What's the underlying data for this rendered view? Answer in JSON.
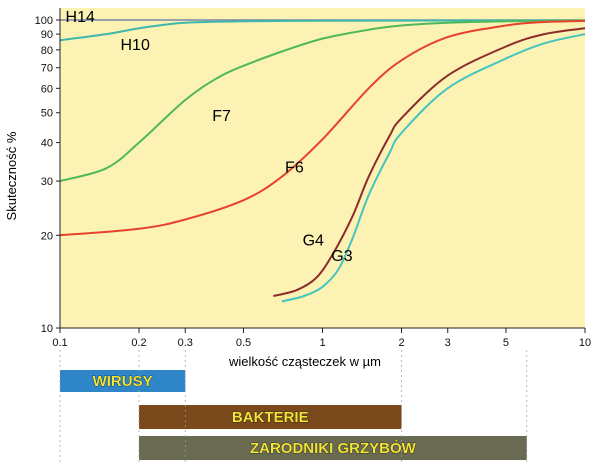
{
  "chart_data": {
    "type": "line",
    "xlabel": "wielkość cząsteczek w µm",
    "ylabel": "Skuteczność %",
    "xscale": "log",
    "yscale": "log",
    "xlim": [
      0.1,
      10
    ],
    "ylim": [
      10,
      100
    ],
    "x_ticks": [
      "0.1",
      "0.2",
      "0.3",
      "0.5",
      "1",
      "2",
      "3",
      "5",
      "10"
    ],
    "y_ticks": [
      "10",
      "20",
      "30",
      "40",
      "50",
      "60",
      "70",
      "80",
      "90",
      "100"
    ],
    "grid": false,
    "background": "#fbf2b4",
    "series": [
      {
        "name": "H14",
        "color": "#7a86a8",
        "x": [
          0.1,
          10
        ],
        "y": [
          100,
          100
        ]
      },
      {
        "name": "H10",
        "color": "#3fb8ac",
        "x": [
          0.1,
          0.15,
          0.2,
          0.25,
          0.3,
          0.5,
          1,
          10
        ],
        "y": [
          86,
          90,
          94,
          96.5,
          98,
          99,
          99.5,
          99.7
        ]
      },
      {
        "name": "F7",
        "color": "#4fb85a",
        "x": [
          0.1,
          0.15,
          0.2,
          0.3,
          0.4,
          0.5,
          0.7,
          1,
          1.5,
          2,
          3,
          5,
          10
        ],
        "y": [
          30,
          33,
          40,
          55,
          65,
          71,
          79,
          87,
          93,
          96,
          98,
          99,
          99.6
        ]
      },
      {
        "name": "F6",
        "color": "#e8412c",
        "x": [
          0.1,
          0.2,
          0.3,
          0.5,
          0.7,
          1,
          1.5,
          2,
          3,
          5,
          7,
          10
        ],
        "y": [
          20,
          21,
          22.5,
          26,
          31,
          41,
          60,
          74,
          88,
          96,
          98.5,
          99.3
        ]
      },
      {
        "name": "G4",
        "color": "#8b2d2a",
        "x": [
          0.65,
          0.8,
          0.95,
          1.1,
          1.3,
          1.5,
          1.8,
          2,
          3,
          5,
          7,
          10
        ],
        "y": [
          12.7,
          13.3,
          14.6,
          17.5,
          23,
          31,
          42,
          48,
          66,
          82,
          90,
          94
        ]
      },
      {
        "name": "G3",
        "color": "#45c4c0",
        "x": [
          0.7,
          0.85,
          1,
          1.15,
          1.3,
          1.5,
          1.8,
          2,
          3,
          5,
          7,
          10
        ],
        "y": [
          12.2,
          12.7,
          13.6,
          15.5,
          19.5,
          27,
          37,
          43,
          60,
          75,
          84,
          90
        ]
      }
    ],
    "annotations": [
      "H14",
      "H10",
      "F7",
      "F6",
      "G4",
      "G3"
    ],
    "size_bands": [
      {
        "label": "WIRUSY",
        "range": [
          0.1,
          0.3
        ]
      },
      {
        "label": "BAKTERIE",
        "range": [
          0.2,
          2
        ]
      },
      {
        "label": "ZARODNIKI  GRZYBÓW",
        "range": [
          0.2,
          6
        ]
      }
    ]
  }
}
